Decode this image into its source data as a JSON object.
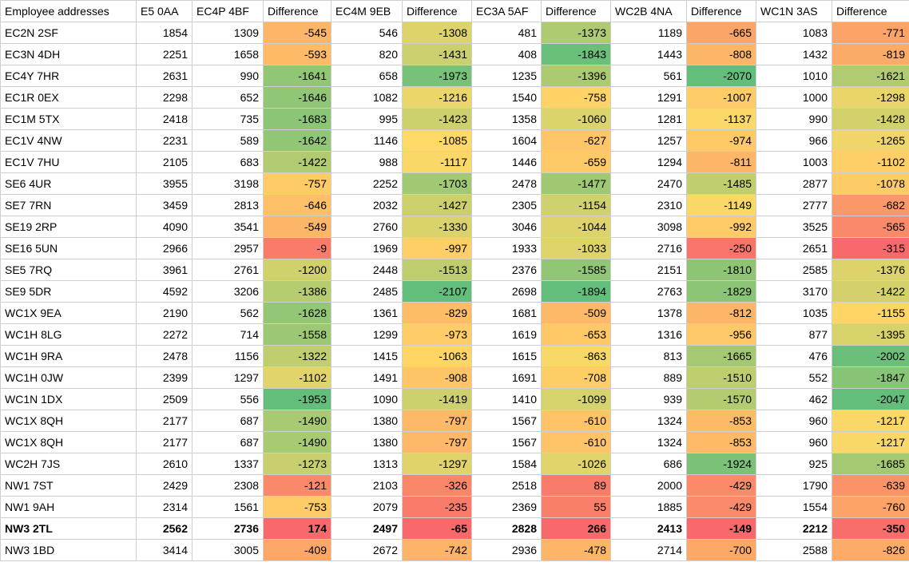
{
  "headers": [
    "Employee addresses",
    "E5 0AA",
    "EC4P 4BF",
    "Difference",
    "EC4M 9EB",
    "Difference",
    "EC3A 5AF",
    "Difference",
    "WC2B 4NA",
    "Difference",
    "WC1N 3AS",
    "Difference"
  ],
  "highlight_row": "NW3 2TL",
  "colors": {
    "scale_green": "#63be7b",
    "scale_yellow": "#ffd966",
    "scale_red": "#f8696b",
    "grid": "#cfcfcf"
  },
  "rows": [
    [
      "EC2N 2SF",
      "1854",
      "1309",
      "-545",
      "546",
      "-1308",
      "481",
      "-1373",
      "1189",
      "-665",
      "1083",
      "-771"
    ],
    [
      "EC3N 4DH",
      "2251",
      "1658",
      "-593",
      "820",
      "-1431",
      "408",
      "-1843",
      "1443",
      "-808",
      "1432",
      "-819"
    ],
    [
      "EC4Y 7HR",
      "2631",
      "990",
      "-1641",
      "658",
      "-1973",
      "1235",
      "-1396",
      "561",
      "-2070",
      "1010",
      "-1621"
    ],
    [
      "EC1R 0EX",
      "2298",
      "652",
      "-1646",
      "1082",
      "-1216",
      "1540",
      "-758",
      "1291",
      "-1007",
      "1000",
      "-1298"
    ],
    [
      "EC1M 5TX",
      "2418",
      "735",
      "-1683",
      "995",
      "-1423",
      "1358",
      "-1060",
      "1281",
      "-1137",
      "990",
      "-1428"
    ],
    [
      "EC1V 4NW",
      "2231",
      "589",
      "-1642",
      "1146",
      "-1085",
      "1604",
      "-627",
      "1257",
      "-974",
      "966",
      "-1265"
    ],
    [
      "EC1V 7HU",
      "2105",
      "683",
      "-1422",
      "988",
      "-1117",
      "1446",
      "-659",
      "1294",
      "-811",
      "1003",
      "-1102"
    ],
    [
      "SE6 4UR",
      "3955",
      "3198",
      "-757",
      "2252",
      "-1703",
      "2478",
      "-1477",
      "2470",
      "-1485",
      "2877",
      "-1078"
    ],
    [
      "SE7 7RN",
      "3459",
      "2813",
      "-646",
      "2032",
      "-1427",
      "2305",
      "-1154",
      "2310",
      "-1149",
      "2777",
      "-682"
    ],
    [
      "SE19 2RP",
      "4090",
      "3541",
      "-549",
      "2760",
      "-1330",
      "3046",
      "-1044",
      "3098",
      "-992",
      "3525",
      "-565"
    ],
    [
      "SE16 5UN",
      "2966",
      "2957",
      "-9",
      "1969",
      "-997",
      "1933",
      "-1033",
      "2716",
      "-250",
      "2651",
      "-315"
    ],
    [
      "SE5 7RQ",
      "3961",
      "2761",
      "-1200",
      "2448",
      "-1513",
      "2376",
      "-1585",
      "2151",
      "-1810",
      "2585",
      "-1376"
    ],
    [
      "SE9 5DR",
      "4592",
      "3206",
      "-1386",
      "2485",
      "-2107",
      "2698",
      "-1894",
      "2763",
      "-1829",
      "3170",
      "-1422"
    ],
    [
      "WC1X 9EA",
      "2190",
      "562",
      "-1628",
      "1361",
      "-829",
      "1681",
      "-509",
      "1378",
      "-812",
      "1035",
      "-1155"
    ],
    [
      "WC1H 8LG",
      "2272",
      "714",
      "-1558",
      "1299",
      "-973",
      "1619",
      "-653",
      "1316",
      "-956",
      "877",
      "-1395"
    ],
    [
      "WC1H 9RA",
      "2478",
      "1156",
      "-1322",
      "1415",
      "-1063",
      "1615",
      "-863",
      "813",
      "-1665",
      "476",
      "-2002"
    ],
    [
      "WC1H 0JW",
      "2399",
      "1297",
      "-1102",
      "1491",
      "-908",
      "1691",
      "-708",
      "889",
      "-1510",
      "552",
      "-1847"
    ],
    [
      "WC1N 1DX",
      "2509",
      "556",
      "-1953",
      "1090",
      "-1419",
      "1410",
      "-1099",
      "939",
      "-1570",
      "462",
      "-2047"
    ],
    [
      "WC1X 8QH",
      "2177",
      "687",
      "-1490",
      "1380",
      "-797",
      "1567",
      "-610",
      "1324",
      "-853",
      "960",
      "-1217"
    ],
    [
      "WC1X 8QH",
      "2177",
      "687",
      "-1490",
      "1380",
      "-797",
      "1567",
      "-610",
      "1324",
      "-853",
      "960",
      "-1217"
    ],
    [
      "WC2H 7JS",
      "2610",
      "1337",
      "-1273",
      "1313",
      "-1297",
      "1584",
      "-1026",
      "686",
      "-1924",
      "925",
      "-1685"
    ],
    [
      "NW1 7ST",
      "2429",
      "2308",
      "-121",
      "2103",
      "-326",
      "2518",
      "89",
      "2000",
      "-429",
      "1790",
      "-639"
    ],
    [
      "NW1 9AH",
      "2314",
      "1561",
      "-753",
      "2079",
      "-235",
      "2369",
      "55",
      "1885",
      "-429",
      "1554",
      "-760"
    ],
    [
      "NW3 2TL",
      "2562",
      "2736",
      "174",
      "2497",
      "-65",
      "2828",
      "266",
      "2413",
      "-149",
      "2212",
      "-350"
    ],
    [
      "NW3 1BD",
      "3414",
      "3005",
      "-409",
      "2672",
      "-742",
      "2936",
      "-478",
      "2714",
      "-700",
      "2588",
      "-826"
    ]
  ]
}
